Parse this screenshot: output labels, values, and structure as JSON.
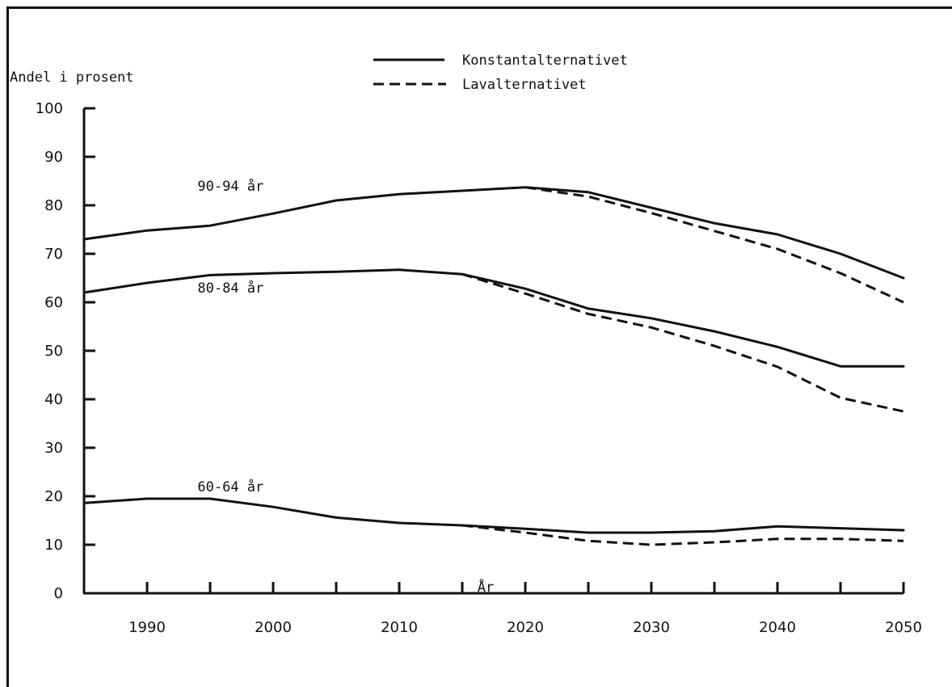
{
  "chart_data": {
    "type": "line",
    "ylabel": "Andel i prosent",
    "xlabel": "År",
    "xlim": [
      1985,
      2050
    ],
    "ylim": [
      0,
      100
    ],
    "x_ticks": [
      1990,
      2000,
      2010,
      2020,
      2030,
      2040,
      2050
    ],
    "y_ticks": [
      0,
      10,
      20,
      30,
      40,
      50,
      60,
      70,
      80,
      90,
      100
    ],
    "legend": {
      "placement": "top-center",
      "entries": [
        {
          "name": "Konstantalternativet",
          "style": "solid"
        },
        {
          "name": "Lavalternativet",
          "style": "dashed"
        }
      ]
    },
    "group_labels": [
      {
        "text": "90-94 år",
        "x": 1994,
        "y": 83
      },
      {
        "text": "80-84 år",
        "x": 1994,
        "y": 62
      },
      {
        "text": "60-64 år",
        "x": 1994,
        "y": 21
      }
    ],
    "x": [
      1985,
      1990,
      1995,
      2000,
      2005,
      2010,
      2015,
      2020,
      2025,
      2030,
      2035,
      2040,
      2045,
      2050
    ],
    "series": [
      {
        "group": "90-94 år",
        "name": "Konstantalternativet",
        "style": "solid",
        "values": [
          73,
          74.8,
          75.8,
          78.3,
          81,
          82.3,
          83,
          83.7,
          82.7,
          79.5,
          76.3,
          74,
          70,
          65
        ]
      },
      {
        "group": "90-94 år",
        "name": "Lavalternativet",
        "style": "dashed",
        "values": [
          null,
          null,
          null,
          null,
          null,
          null,
          null,
          83.7,
          81.8,
          78.4,
          74.7,
          71,
          66,
          60
        ]
      },
      {
        "group": "80-84 år",
        "name": "Konstantalternativet",
        "style": "solid",
        "values": [
          62,
          64,
          65.6,
          66,
          66.3,
          66.7,
          65.8,
          62.8,
          58.7,
          56.7,
          54,
          50.8,
          46.8,
          46.8
        ]
      },
      {
        "group": "80-84 år",
        "name": "Lavalternativet",
        "style": "dashed",
        "values": [
          null,
          null,
          null,
          null,
          null,
          null,
          65.8,
          61.8,
          57.6,
          54.8,
          51,
          46.7,
          40.3,
          37.5
        ]
      },
      {
        "group": "60-64 år",
        "name": "Konstantalternativet",
        "style": "solid",
        "values": [
          18.6,
          19.5,
          19.5,
          17.8,
          15.6,
          14.5,
          14,
          13.3,
          12.5,
          12.5,
          12.8,
          13.8,
          13.4,
          13
        ]
      },
      {
        "group": "60-64 år",
        "name": "Lavalternativet",
        "style": "dashed",
        "values": [
          null,
          null,
          null,
          null,
          null,
          null,
          14,
          12.5,
          10.8,
          10,
          10.5,
          11.2,
          11.2,
          10.8
        ]
      }
    ]
  }
}
